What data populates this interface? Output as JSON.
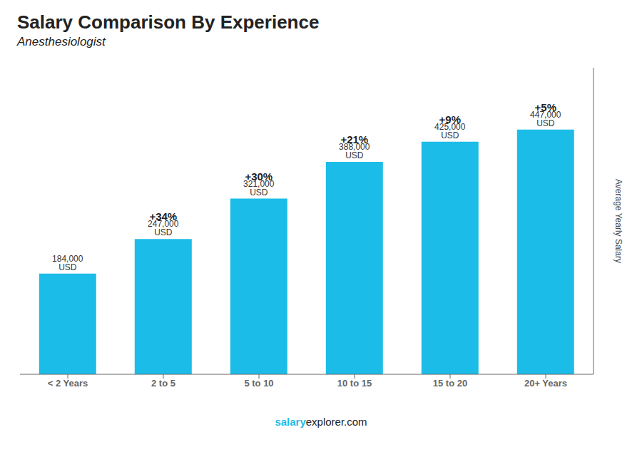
{
  "chart_data": {
    "type": "bar",
    "title": "Salary Comparison By Experience",
    "subtitle": "Anesthesiologist",
    "categories": [
      "< 2 Years",
      "2 to 5",
      "5 to 10",
      "10 to 15",
      "15 to 20",
      "20+ Years"
    ],
    "values": [
      184000,
      247000,
      321000,
      388000,
      425000,
      447000
    ],
    "value_labels": [
      "184,000 USD",
      "247,000 USD",
      "321,000 USD",
      "388,000 USD",
      "425,000 USD",
      "447,000 USD"
    ],
    "data_labels": true,
    "annotations": [
      "+34%",
      "+30%",
      "+21%",
      "+9%",
      "+5%"
    ],
    "color": "#1BBDE8",
    "ylabel": "Average Yearly Salary",
    "ylim": [
      0,
      560000
    ],
    "yticks": [],
    "tick_labels": "x",
    "grid": false,
    "footer": [
      "salary",
      "explorer.com"
    ]
  }
}
